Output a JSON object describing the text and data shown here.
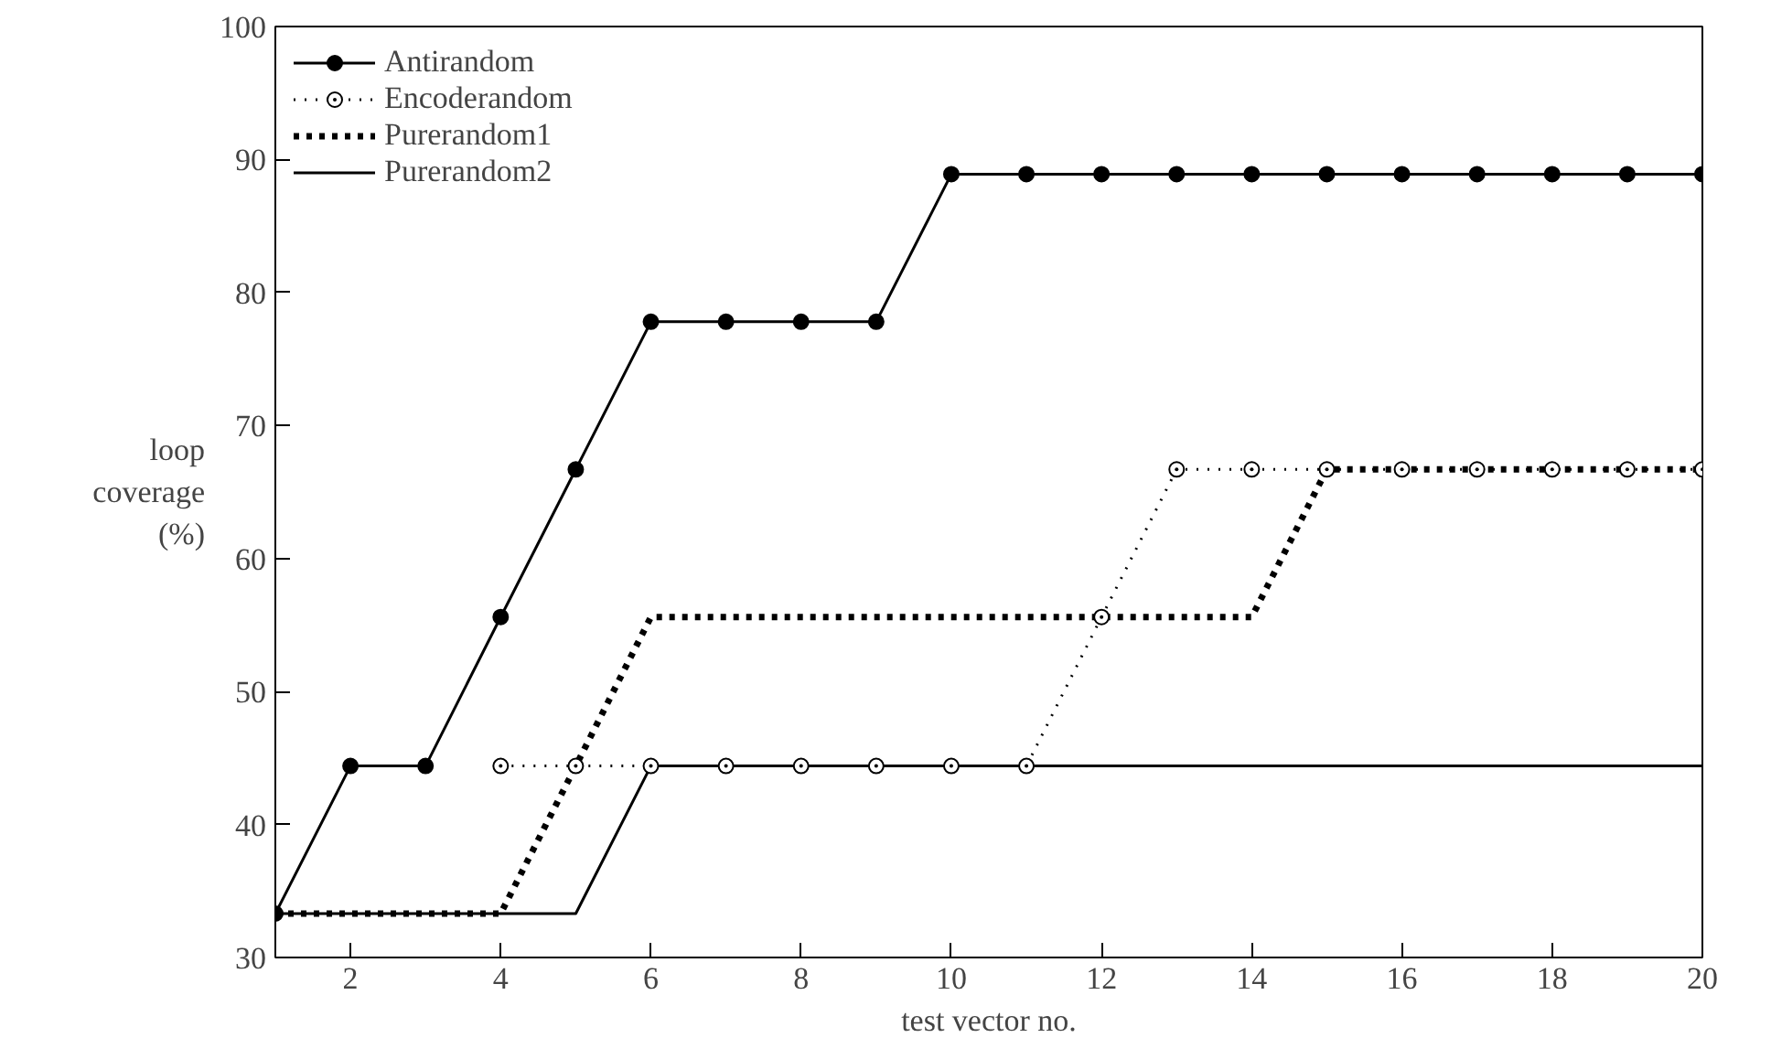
{
  "chart_data": {
    "type": "line",
    "xlabel": "test vector no.",
    "ylabel": "loop\ncoverage\n(%)",
    "x": [
      1,
      2,
      3,
      4,
      5,
      6,
      7,
      8,
      9,
      10,
      11,
      12,
      13,
      14,
      15,
      16,
      17,
      18,
      19,
      20
    ],
    "xlim": [
      1,
      20
    ],
    "xticks": [
      2,
      4,
      6,
      8,
      10,
      12,
      14,
      16,
      18,
      20
    ],
    "ylim": [
      30,
      100
    ],
    "yticks": [
      30,
      40,
      50,
      60,
      70,
      80,
      90,
      100
    ],
    "grid": false,
    "legend": "top left",
    "series": [
      {
        "name": "Antirandom",
        "color": "#000000",
        "marker": "circle",
        "line_style": "solid",
        "values": [
          33.3,
          44.4,
          44.4,
          55.6,
          66.7,
          77.8,
          77.8,
          77.8,
          77.8,
          88.9,
          88.9,
          88.9,
          88.9,
          88.9,
          88.9,
          88.9,
          88.9,
          88.9,
          88.9,
          88.9
        ]
      },
      {
        "name": "Encoderandom",
        "color": "#000000",
        "marker": "circle_dot",
        "line_style": "dotted",
        "values": [
          null,
          null,
          null,
          44.4,
          44.4,
          44.4,
          44.4,
          44.4,
          44.4,
          44.4,
          44.4,
          55.6,
          66.7,
          66.7,
          66.7,
          66.7,
          66.7,
          66.7,
          66.7,
          66.7
        ]
      },
      {
        "name": "Purerandom1",
        "color": "#000000",
        "marker": "none",
        "line_style": "dotted_thick",
        "values": [
          33.3,
          33.3,
          33.3,
          33.3,
          44.4,
          55.6,
          55.6,
          55.6,
          55.6,
          55.6,
          55.6,
          55.6,
          55.6,
          55.6,
          66.7,
          66.7,
          66.7,
          66.7,
          66.7,
          66.7
        ]
      },
      {
        "name": "Purerandom2",
        "color": "#000000",
        "marker": "none",
        "line_style": "solid",
        "values": [
          33.3,
          33.3,
          33.3,
          33.3,
          33.3,
          44.4,
          44.4,
          44.4,
          44.4,
          44.4,
          44.4,
          44.4,
          44.4,
          44.4,
          44.4,
          44.4,
          44.4,
          44.4,
          44.4,
          44.4
        ]
      }
    ]
  }
}
